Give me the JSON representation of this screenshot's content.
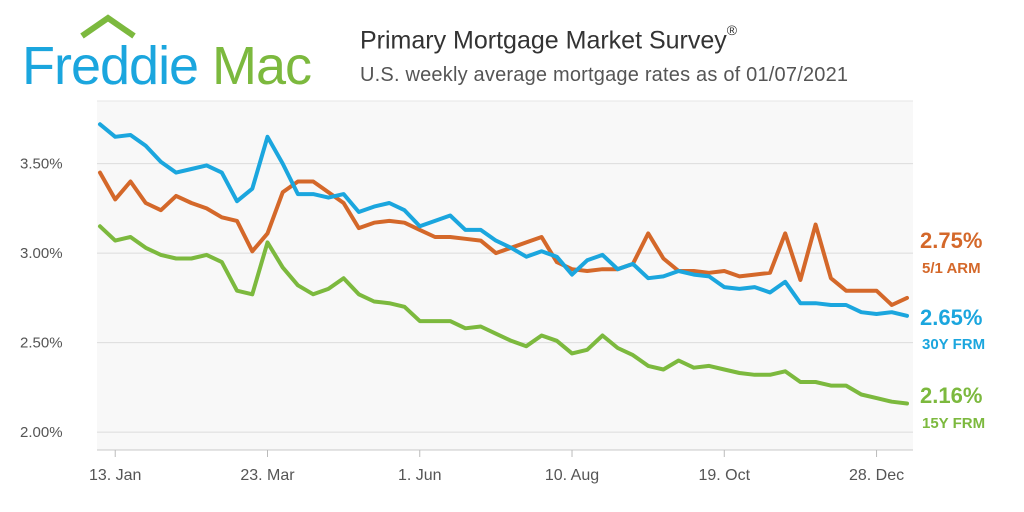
{
  "header": {
    "logo_text_1": "Freddie",
    "logo_text_2": "Mac",
    "title": "Primary Mortgage Market Survey",
    "title_mark": "®",
    "subtitle": "U.S. weekly average mortgage rates as of 01/07/2021"
  },
  "colors": {
    "arm": "#d4682a",
    "frm30": "#1ba6de",
    "frm15": "#7cb93e",
    "logo_blue": "#1ba6de",
    "logo_green": "#7cb93e"
  },
  "chart_data": {
    "type": "line",
    "ylim": [
      1.9,
      3.85
    ],
    "yticks": [
      2.0,
      2.5,
      3.0,
      3.5
    ],
    "ytick_labels": [
      "2.00%",
      "2.50%",
      "3.00%",
      "3.50%"
    ],
    "xticks": [
      {
        "index": 1,
        "label": "13. Jan"
      },
      {
        "index": 11,
        "label": "23. Mar"
      },
      {
        "index": 21,
        "label": "1. Jun"
      },
      {
        "index": 31,
        "label": "10. Aug"
      },
      {
        "index": 41,
        "label": "19. Oct"
      },
      {
        "index": 51,
        "label": "28. Dec"
      }
    ],
    "grid": true,
    "series": [
      {
        "name": "5/1 ARM",
        "color_key": "arm",
        "end_label": "2.75%",
        "values": [
          3.45,
          3.3,
          3.4,
          3.28,
          3.24,
          3.32,
          3.28,
          3.25,
          3.2,
          3.18,
          3.01,
          3.11,
          3.34,
          3.4,
          3.4,
          3.34,
          3.28,
          3.14,
          3.17,
          3.18,
          3.17,
          3.13,
          3.09,
          3.09,
          3.08,
          3.07,
          3.0,
          3.03,
          3.06,
          3.09,
          2.95,
          2.91,
          2.9,
          2.91,
          2.91,
          2.94,
          3.11,
          2.97,
          2.9,
          2.9,
          2.89,
          2.9,
          2.87,
          2.88,
          2.89,
          3.11,
          2.85,
          3.16,
          2.86,
          2.79,
          2.79,
          2.79,
          2.71,
          2.75
        ]
      },
      {
        "name": "30Y FRM",
        "color_key": "frm30",
        "end_label": "2.65%",
        "values": [
          3.72,
          3.65,
          3.66,
          3.6,
          3.51,
          3.45,
          3.47,
          3.49,
          3.45,
          3.29,
          3.36,
          3.65,
          3.5,
          3.33,
          3.33,
          3.31,
          3.33,
          3.23,
          3.26,
          3.28,
          3.24,
          3.15,
          3.18,
          3.21,
          3.13,
          3.13,
          3.07,
          3.03,
          2.98,
          3.01,
          2.98,
          2.88,
          2.96,
          2.99,
          2.91,
          2.94,
          2.86,
          2.87,
          2.9,
          2.88,
          2.87,
          2.81,
          2.8,
          2.81,
          2.78,
          2.84,
          2.72,
          2.72,
          2.71,
          2.71,
          2.67,
          2.66,
          2.67,
          2.65
        ]
      },
      {
        "name": "15Y FRM",
        "color_key": "frm15",
        "end_label": "2.16%",
        "values": [
          3.15,
          3.07,
          3.09,
          3.03,
          2.99,
          2.97,
          2.97,
          2.99,
          2.95,
          2.79,
          2.77,
          3.06,
          2.92,
          2.82,
          2.77,
          2.8,
          2.86,
          2.77,
          2.73,
          2.72,
          2.7,
          2.62,
          2.62,
          2.62,
          2.58,
          2.59,
          2.55,
          2.51,
          2.48,
          2.54,
          2.51,
          2.44,
          2.46,
          2.54,
          2.47,
          2.43,
          2.37,
          2.35,
          2.4,
          2.36,
          2.37,
          2.35,
          2.33,
          2.32,
          2.32,
          2.34,
          2.28,
          2.28,
          2.26,
          2.26,
          2.21,
          2.19,
          2.17,
          2.16
        ]
      }
    ]
  }
}
